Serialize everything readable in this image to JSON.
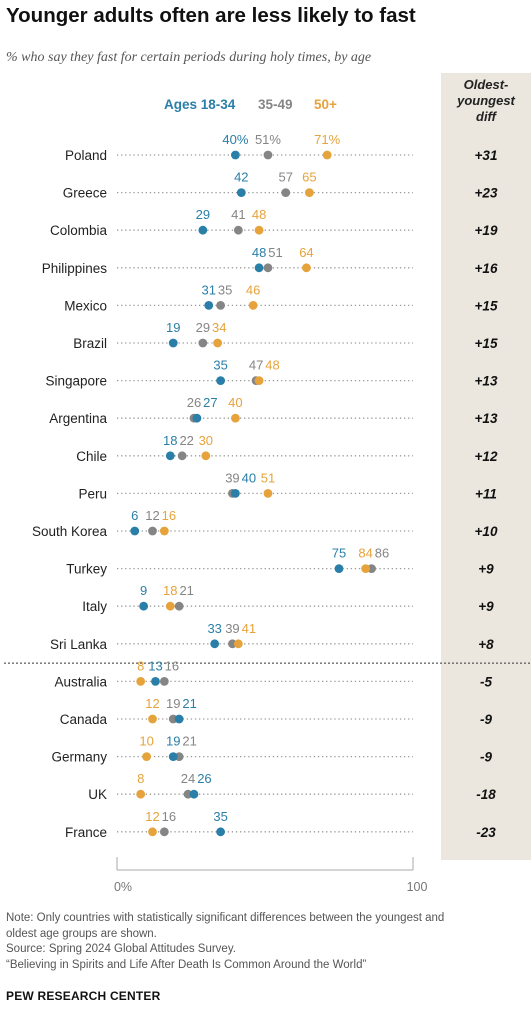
{
  "title": "Younger adults often are less likely to fast",
  "subtitle": "% who say they fast for certain periods during holy times, by age",
  "diff_header": [
    "Oldest-",
    "youngest",
    "diff"
  ],
  "colors": {
    "young": "#2a7fa8",
    "mid": "#858585",
    "old": "#e6a33b",
    "diff_bg": "#ebe7df"
  },
  "notes": {
    "line1": "Note: Only countries with statistically significant differences between the youngest and",
    "line2": "oldest age groups are shown.",
    "line3": "Source: Spring 2024 Global Attitudes Survey.",
    "line4": "“Believing in Spirits and Life After Death Is Common Around the World”"
  },
  "brand": "PEW RESEARCH CENTER",
  "chart_data": {
    "type": "scatter",
    "subtype": "dot-plot",
    "xlim": [
      0,
      100
    ],
    "x_tick_labels": [
      "0%",
      "100"
    ],
    "categories": [
      "Poland",
      "Greece",
      "Colombia",
      "Philippines",
      "Mexico",
      "Brazil",
      "Singapore",
      "Argentina",
      "Chile",
      "Peru",
      "South Korea",
      "Turkey",
      "Italy",
      "Sri Lanka",
      "Australia",
      "Canada",
      "Germany",
      "UK",
      "France"
    ],
    "series": [
      {
        "name": "Ages 18-34",
        "key": "young",
        "values": [
          40,
          42,
          29,
          48,
          31,
          19,
          35,
          27,
          18,
          40,
          6,
          75,
          9,
          33,
          13,
          21,
          19,
          26,
          35
        ]
      },
      {
        "name": "35-49",
        "key": "mid",
        "values": [
          51,
          57,
          41,
          51,
          35,
          29,
          47,
          26,
          22,
          39,
          12,
          86,
          21,
          39,
          16,
          19,
          21,
          24,
          16
        ]
      },
      {
        "name": "50+",
        "key": "old",
        "values": [
          71,
          65,
          48,
          64,
          46,
          34,
          48,
          40,
          30,
          51,
          16,
          84,
          18,
          41,
          8,
          12,
          10,
          8,
          12
        ]
      }
    ],
    "value_labels": {
      "young": [
        "40%",
        "42",
        "29",
        "48",
        "31",
        "19",
        "35",
        "27",
        "18",
        "40",
        "6",
        "75",
        "9",
        "33",
        "13",
        "21",
        "19",
        "26",
        "35"
      ],
      "mid": [
        "51%",
        "57",
        "41",
        "51",
        "35",
        "29",
        "47",
        "26",
        "22",
        "39",
        "12",
        "86",
        "21",
        "39",
        "16",
        "19",
        "21",
        "24",
        "16"
      ],
      "old": [
        "71%",
        "65",
        "48",
        "64",
        "46",
        "34",
        "48",
        "40",
        "30",
        "51",
        "16",
        "84",
        "18",
        "41",
        "8",
        "12",
        "10",
        "8",
        "12"
      ]
    },
    "diff_values": [
      "+31",
      "+23",
      "+19",
      "+16",
      "+15",
      "+15",
      "+13",
      "+13",
      "+12",
      "+11",
      "+10",
      "+9",
      "+9",
      "+8",
      "-5",
      "-9",
      "-9",
      "-18",
      "-23"
    ],
    "divider_after": "Sri Lanka"
  }
}
